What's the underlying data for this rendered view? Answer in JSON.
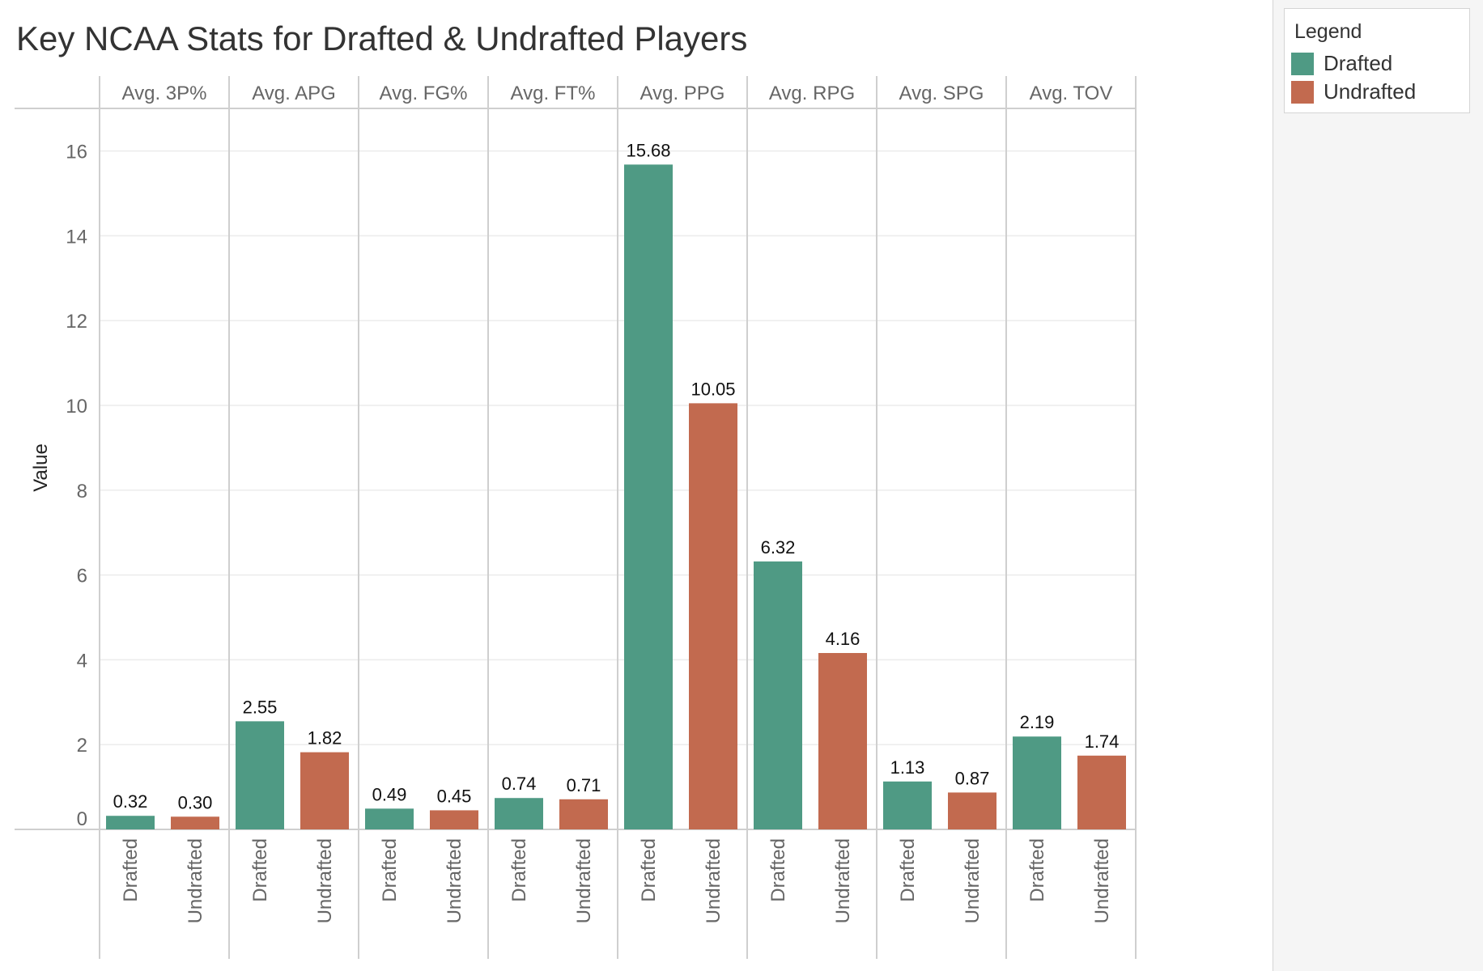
{
  "chart_data": {
    "type": "bar",
    "title": "Key NCAA Stats for Drafted & Undrafted Players",
    "ylabel": "Value",
    "ylim": [
      0,
      17
    ],
    "yticks": [
      0,
      2,
      4,
      6,
      8,
      10,
      12,
      14,
      16
    ],
    "grid": true,
    "legend_position": "top-right",
    "legend_title": "Legend",
    "categories": [
      "Avg. 3P%",
      "Avg. APG",
      "Avg. FG%",
      "Avg. FT%",
      "Avg. PPG",
      "Avg. RPG",
      "Avg. SPG",
      "Avg. TOV"
    ],
    "series": [
      {
        "name": "Drafted",
        "color": "#4f9a84",
        "values": [
          0.32,
          2.55,
          0.49,
          0.74,
          15.68,
          6.32,
          1.13,
          2.19
        ],
        "labels": [
          "0.32",
          "2.55",
          "0.49",
          "0.74",
          "15.68",
          "6.32",
          "1.13",
          "2.19"
        ]
      },
      {
        "name": "Undrafted",
        "color": "#c26a4f",
        "values": [
          0.3,
          1.82,
          0.45,
          0.71,
          10.05,
          4.16,
          0.87,
          1.74
        ],
        "labels": [
          "0.30",
          "1.82",
          "0.45",
          "0.71",
          "10.05",
          "4.16",
          "0.87",
          "1.74"
        ]
      }
    ]
  }
}
